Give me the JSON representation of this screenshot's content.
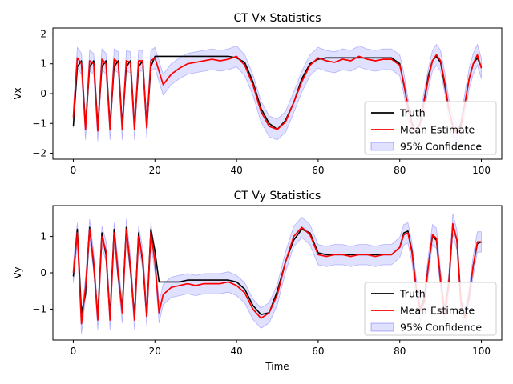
{
  "colors": {
    "truth": "#000000",
    "estimate": "#ff0000",
    "confidence": "#0000ff"
  },
  "chart_data": [
    {
      "type": "line",
      "title": "CT Vx Statistics",
      "xlabel": "",
      "ylabel": "Vx",
      "xlim": [
        -5,
        105
      ],
      "ylim": [
        -2.2,
        2.2
      ],
      "xticks": [
        0,
        20,
        40,
        60,
        80,
        100
      ],
      "yticks": [
        -2,
        -1,
        0,
        1,
        2
      ],
      "grid": false,
      "legend_placement": "lower right",
      "legend": [
        "Truth",
        "Mean Estimate",
        "95% Confidence"
      ],
      "x": [
        0,
        1,
        2,
        3,
        4,
        5,
        6,
        7,
        8,
        9,
        10,
        11,
        12,
        13,
        14,
        15,
        16,
        17,
        18,
        19,
        20,
        22,
        24,
        26,
        28,
        30,
        32,
        34,
        36,
        38,
        40,
        42,
        44,
        46,
        48,
        50,
        52,
        54,
        56,
        58,
        60,
        62,
        64,
        66,
        68,
        70,
        72,
        74,
        76,
        78,
        80,
        81,
        82,
        83,
        84,
        85,
        86,
        87,
        88,
        89,
        90,
        91,
        92,
        93,
        94,
        95,
        96,
        97,
        98,
        99,
        100
      ],
      "series": [
        {
          "name": "Truth",
          "values": [
            -1.1,
            0.9,
            1.1,
            -1.1,
            0.9,
            1.1,
            -1.1,
            0.9,
            1.1,
            -1.1,
            0.9,
            1.1,
            -1.1,
            0.9,
            1.1,
            -1.1,
            0.9,
            1.1,
            -1.1,
            0.9,
            1.25,
            1.25,
            1.25,
            1.25,
            1.25,
            1.25,
            1.25,
            1.25,
            1.25,
            1.25,
            1.2,
            1.05,
            0.4,
            -0.5,
            -1.0,
            -1.2,
            -0.9,
            -0.3,
            0.5,
            1.0,
            1.15,
            1.2,
            1.2,
            1.2,
            1.2,
            1.2,
            1.2,
            1.2,
            1.2,
            1.2,
            1.0,
            0.3,
            -0.4,
            -1.0,
            -1.3,
            -1.0,
            -0.2,
            0.6,
            1.1,
            1.25,
            1.05,
            0.3,
            -0.5,
            -1.1,
            -1.3,
            -1.0,
            -0.3,
            0.5,
            1.0,
            1.2,
            0.9
          ]
        },
        {
          "name": "Mean Estimate",
          "values": [
            -0.8,
            1.2,
            1.0,
            -1.2,
            1.1,
            1.0,
            -1.25,
            1.15,
            1.0,
            -1.2,
            1.15,
            1.05,
            -1.2,
            1.1,
            1.05,
            -1.2,
            1.1,
            1.1,
            -1.15,
            1.1,
            1.2,
            0.3,
            0.65,
            0.85,
            1.0,
            1.05,
            1.1,
            1.15,
            1.1,
            1.15,
            1.25,
            0.95,
            0.3,
            -0.6,
            -1.1,
            -1.2,
            -0.95,
            -0.3,
            0.4,
            0.95,
            1.2,
            1.1,
            1.05,
            1.15,
            1.1,
            1.25,
            1.15,
            1.1,
            1.15,
            1.15,
            0.95,
            0.35,
            -0.5,
            -1.05,
            -1.3,
            -1.0,
            -0.25,
            0.5,
            1.1,
            1.3,
            1.1,
            0.4,
            -0.5,
            -1.1,
            -1.35,
            -1.1,
            -0.3,
            0.5,
            1.0,
            1.3,
            0.85
          ]
        }
      ],
      "confidence_halfwidth": 0.35
    },
    {
      "type": "line",
      "title": "CT Vy Statistics",
      "xlabel": "Time",
      "ylabel": "Vy",
      "xlim": [
        -5,
        105
      ],
      "ylim": [
        -1.85,
        1.85
      ],
      "xticks": [
        0,
        20,
        40,
        60,
        80,
        100
      ],
      "yticks": [
        -1,
        0,
        1
      ],
      "grid": false,
      "legend_placement": "lower right",
      "legend": [
        "Truth",
        "Mean Estimate",
        "95% Confidence"
      ],
      "x": [
        0,
        1,
        2,
        3,
        4,
        5,
        6,
        7,
        8,
        9,
        10,
        11,
        12,
        13,
        14,
        15,
        16,
        17,
        18,
        19,
        20,
        21,
        22,
        24,
        26,
        28,
        30,
        32,
        34,
        36,
        38,
        40,
        42,
        44,
        46,
        48,
        50,
        52,
        54,
        56,
        58,
        60,
        62,
        64,
        66,
        68,
        70,
        72,
        74,
        76,
        78,
        80,
        81,
        82,
        83,
        84,
        85,
        86,
        87,
        88,
        89,
        90,
        91,
        92,
        93,
        94,
        95,
        96,
        97,
        98,
        99,
        100
      ],
      "series": [
        {
          "name": "Truth",
          "values": [
            -0.1,
            1.2,
            -1.1,
            -0.6,
            1.25,
            0.2,
            -1.2,
            1.1,
            0.5,
            -1.2,
            1.2,
            -0.1,
            -1.0,
            1.25,
            0.1,
            -1.2,
            1.1,
            0.3,
            -1.2,
            1.2,
            0.6,
            -0.25,
            -0.25,
            -0.25,
            -0.25,
            -0.2,
            -0.2,
            -0.2,
            -0.2,
            -0.2,
            -0.2,
            -0.25,
            -0.45,
            -0.9,
            -1.15,
            -1.1,
            -0.5,
            0.3,
            0.9,
            1.2,
            1.1,
            0.55,
            0.5,
            0.5,
            0.5,
            0.5,
            0.5,
            0.5,
            0.5,
            0.5,
            0.5,
            0.7,
            1.1,
            1.15,
            0.6,
            -0.4,
            -1.0,
            -0.7,
            0.2,
            1.0,
            0.9,
            -0.2,
            -1.1,
            -0.3,
            1.3,
            0.9,
            -0.8,
            -1.2,
            -0.6,
            0.2,
            0.8,
            0.85
          ]
        },
        {
          "name": "Mean Estimate",
          "values": [
            0.0,
            1.1,
            -1.4,
            -0.4,
            1.2,
            0.3,
            -1.3,
            1.0,
            0.6,
            -1.3,
            1.1,
            0.0,
            -1.1,
            1.2,
            0.2,
            -1.3,
            1.0,
            0.4,
            -1.2,
            1.1,
            0.3,
            -1.1,
            -0.6,
            -0.4,
            -0.35,
            -0.3,
            -0.35,
            -0.3,
            -0.3,
            -0.3,
            -0.25,
            -0.35,
            -0.55,
            -1.0,
            -1.25,
            -1.1,
            -0.6,
            0.3,
            1.0,
            1.25,
            1.05,
            0.5,
            0.45,
            0.5,
            0.5,
            0.45,
            0.5,
            0.5,
            0.45,
            0.5,
            0.5,
            0.7,
            1.05,
            1.1,
            0.55,
            -0.4,
            -1.05,
            -0.8,
            0.2,
            1.05,
            0.95,
            -0.2,
            -1.15,
            -0.35,
            1.35,
            0.9,
            -0.85,
            -1.25,
            -0.65,
            0.2,
            0.85,
            0.85
          ]
        }
      ],
      "confidence_halfwidth": 0.28
    }
  ]
}
